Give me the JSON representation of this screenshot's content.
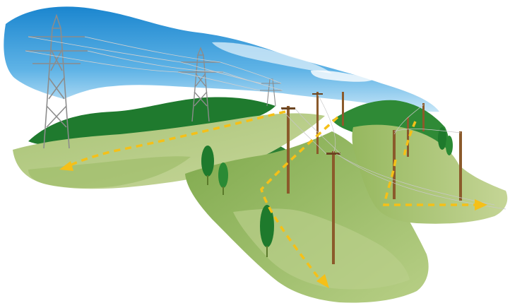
{
  "illustration": {
    "subject": "power-distribution-landscape",
    "colors": {
      "sky_top": "#1f8fd4",
      "sky_bottom": "#a9d8f2",
      "cloud": "#ffffff",
      "hill_dark": "#1f7a2e",
      "hill_mid": "#6aa23a",
      "ground_light": "#b7c985",
      "ground_mid": "#8fb25a",
      "ground_shadow": "#6f9447",
      "tower_steel": "#8c8c8c",
      "pole_wood": "#8b5a2b",
      "arrow": "#f5c018",
      "wire": "#bfbfbf"
    },
    "icons": [
      "transmission-tower-icon",
      "utility-pole-icon",
      "power-flow-arrow-icon",
      "tree-icon"
    ]
  }
}
